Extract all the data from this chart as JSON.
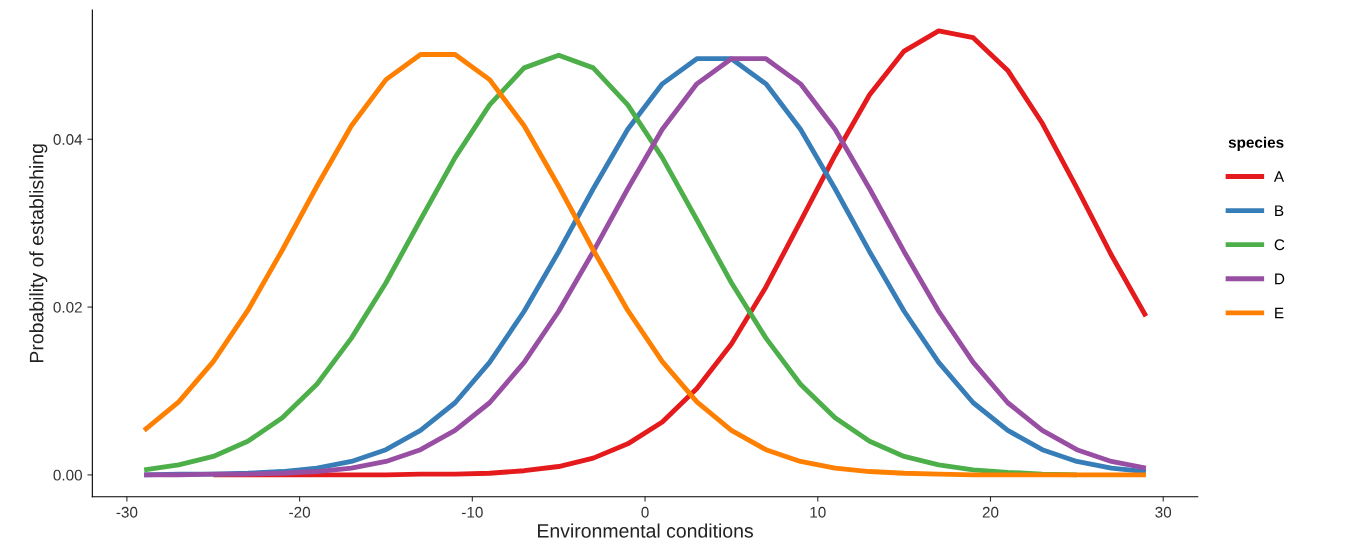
{
  "chart_data": {
    "type": "line",
    "xlabel": "Environmental conditions",
    "ylabel": "Probability of establishing",
    "legend_title": "species",
    "x": [
      -29,
      -27,
      -25,
      -23,
      -21,
      -19,
      -17,
      -15,
      -13,
      -11,
      -9,
      -7,
      -5,
      -3,
      -1,
      1,
      3,
      5,
      7,
      9,
      11,
      13,
      15,
      17,
      19,
      21,
      23,
      25,
      27,
      29
    ],
    "series": [
      {
        "name": "A",
        "color": "#e41a1c",
        "values": [
          null,
          null,
          0,
          0,
          0,
          0,
          0,
          0,
          0.0001,
          0.0001,
          0.0002,
          0.0005,
          0.001,
          0.002,
          0.0037,
          0.0063,
          0.0103,
          0.0156,
          0.0224,
          0.0302,
          0.0381,
          0.0453,
          0.0505,
          0.0529,
          0.0521,
          0.0482,
          0.0419,
          0.0342,
          0.0262,
          0.0189
        ]
      },
      {
        "name": "B",
        "color": "#377eb8",
        "values": [
          0,
          0.0001,
          0.0001,
          0.0002,
          0.0004,
          0.0008,
          0.0016,
          0.003,
          0.0053,
          0.0086,
          0.0134,
          0.0195,
          0.0266,
          0.0341,
          0.0412,
          0.0466,
          0.0496,
          0.0496,
          0.0466,
          0.0412,
          0.0341,
          0.0266,
          0.0195,
          0.0134,
          0.0086,
          0.0053,
          0.003,
          0.0016,
          0.0008,
          0.0004
        ]
      },
      {
        "name": "C",
        "color": "#4daf4a",
        "values": [
          0.0006,
          0.0012,
          0.0022,
          0.004,
          0.0068,
          0.0108,
          0.0163,
          0.0229,
          0.0304,
          0.0378,
          0.0441,
          0.0485,
          0.05,
          0.0485,
          0.0441,
          0.0378,
          0.0304,
          0.0229,
          0.0163,
          0.0108,
          0.0068,
          0.004,
          0.0022,
          0.0012,
          0.0006,
          0.0003,
          0.0001,
          0,
          null,
          null
        ]
      },
      {
        "name": "D",
        "color": "#984ea3",
        "values": [
          0,
          0,
          0.0001,
          0.0001,
          0.0002,
          0.0004,
          0.0008,
          0.0016,
          0.003,
          0.0053,
          0.0086,
          0.0134,
          0.0195,
          0.0266,
          0.0341,
          0.0412,
          0.0466,
          0.0496,
          0.0496,
          0.0466,
          0.0412,
          0.0341,
          0.0266,
          0.0195,
          0.0134,
          0.0086,
          0.0053,
          0.003,
          0.0016,
          0.0008
        ]
      },
      {
        "name": "E",
        "color": "#ff7f00",
        "values": [
          0.0053,
          0.0087,
          0.0135,
          0.0196,
          0.0268,
          0.0344,
          0.0416,
          0.0471,
          0.0501,
          0.0501,
          0.0471,
          0.0416,
          0.0344,
          0.0268,
          0.0196,
          0.0135,
          0.0087,
          0.0053,
          0.003,
          0.0016,
          0.0008,
          0.0004,
          0.0002,
          0.0001,
          0,
          0,
          0,
          0,
          0,
          0
        ]
      }
    ],
    "xlim": [
      -32,
      32
    ],
    "xticks": [
      -30,
      -20,
      -10,
      0,
      10,
      20,
      30
    ],
    "ylim": [
      -0.0026,
      0.0554
    ],
    "yticks": [
      {
        "value": 0,
        "label": "0.00"
      },
      {
        "value": 0.02,
        "label": "0.02"
      },
      {
        "value": 0.04,
        "label": "0.04"
      }
    ],
    "grid": false,
    "legend": "right",
    "marker": "none",
    "line_style": "solid"
  }
}
